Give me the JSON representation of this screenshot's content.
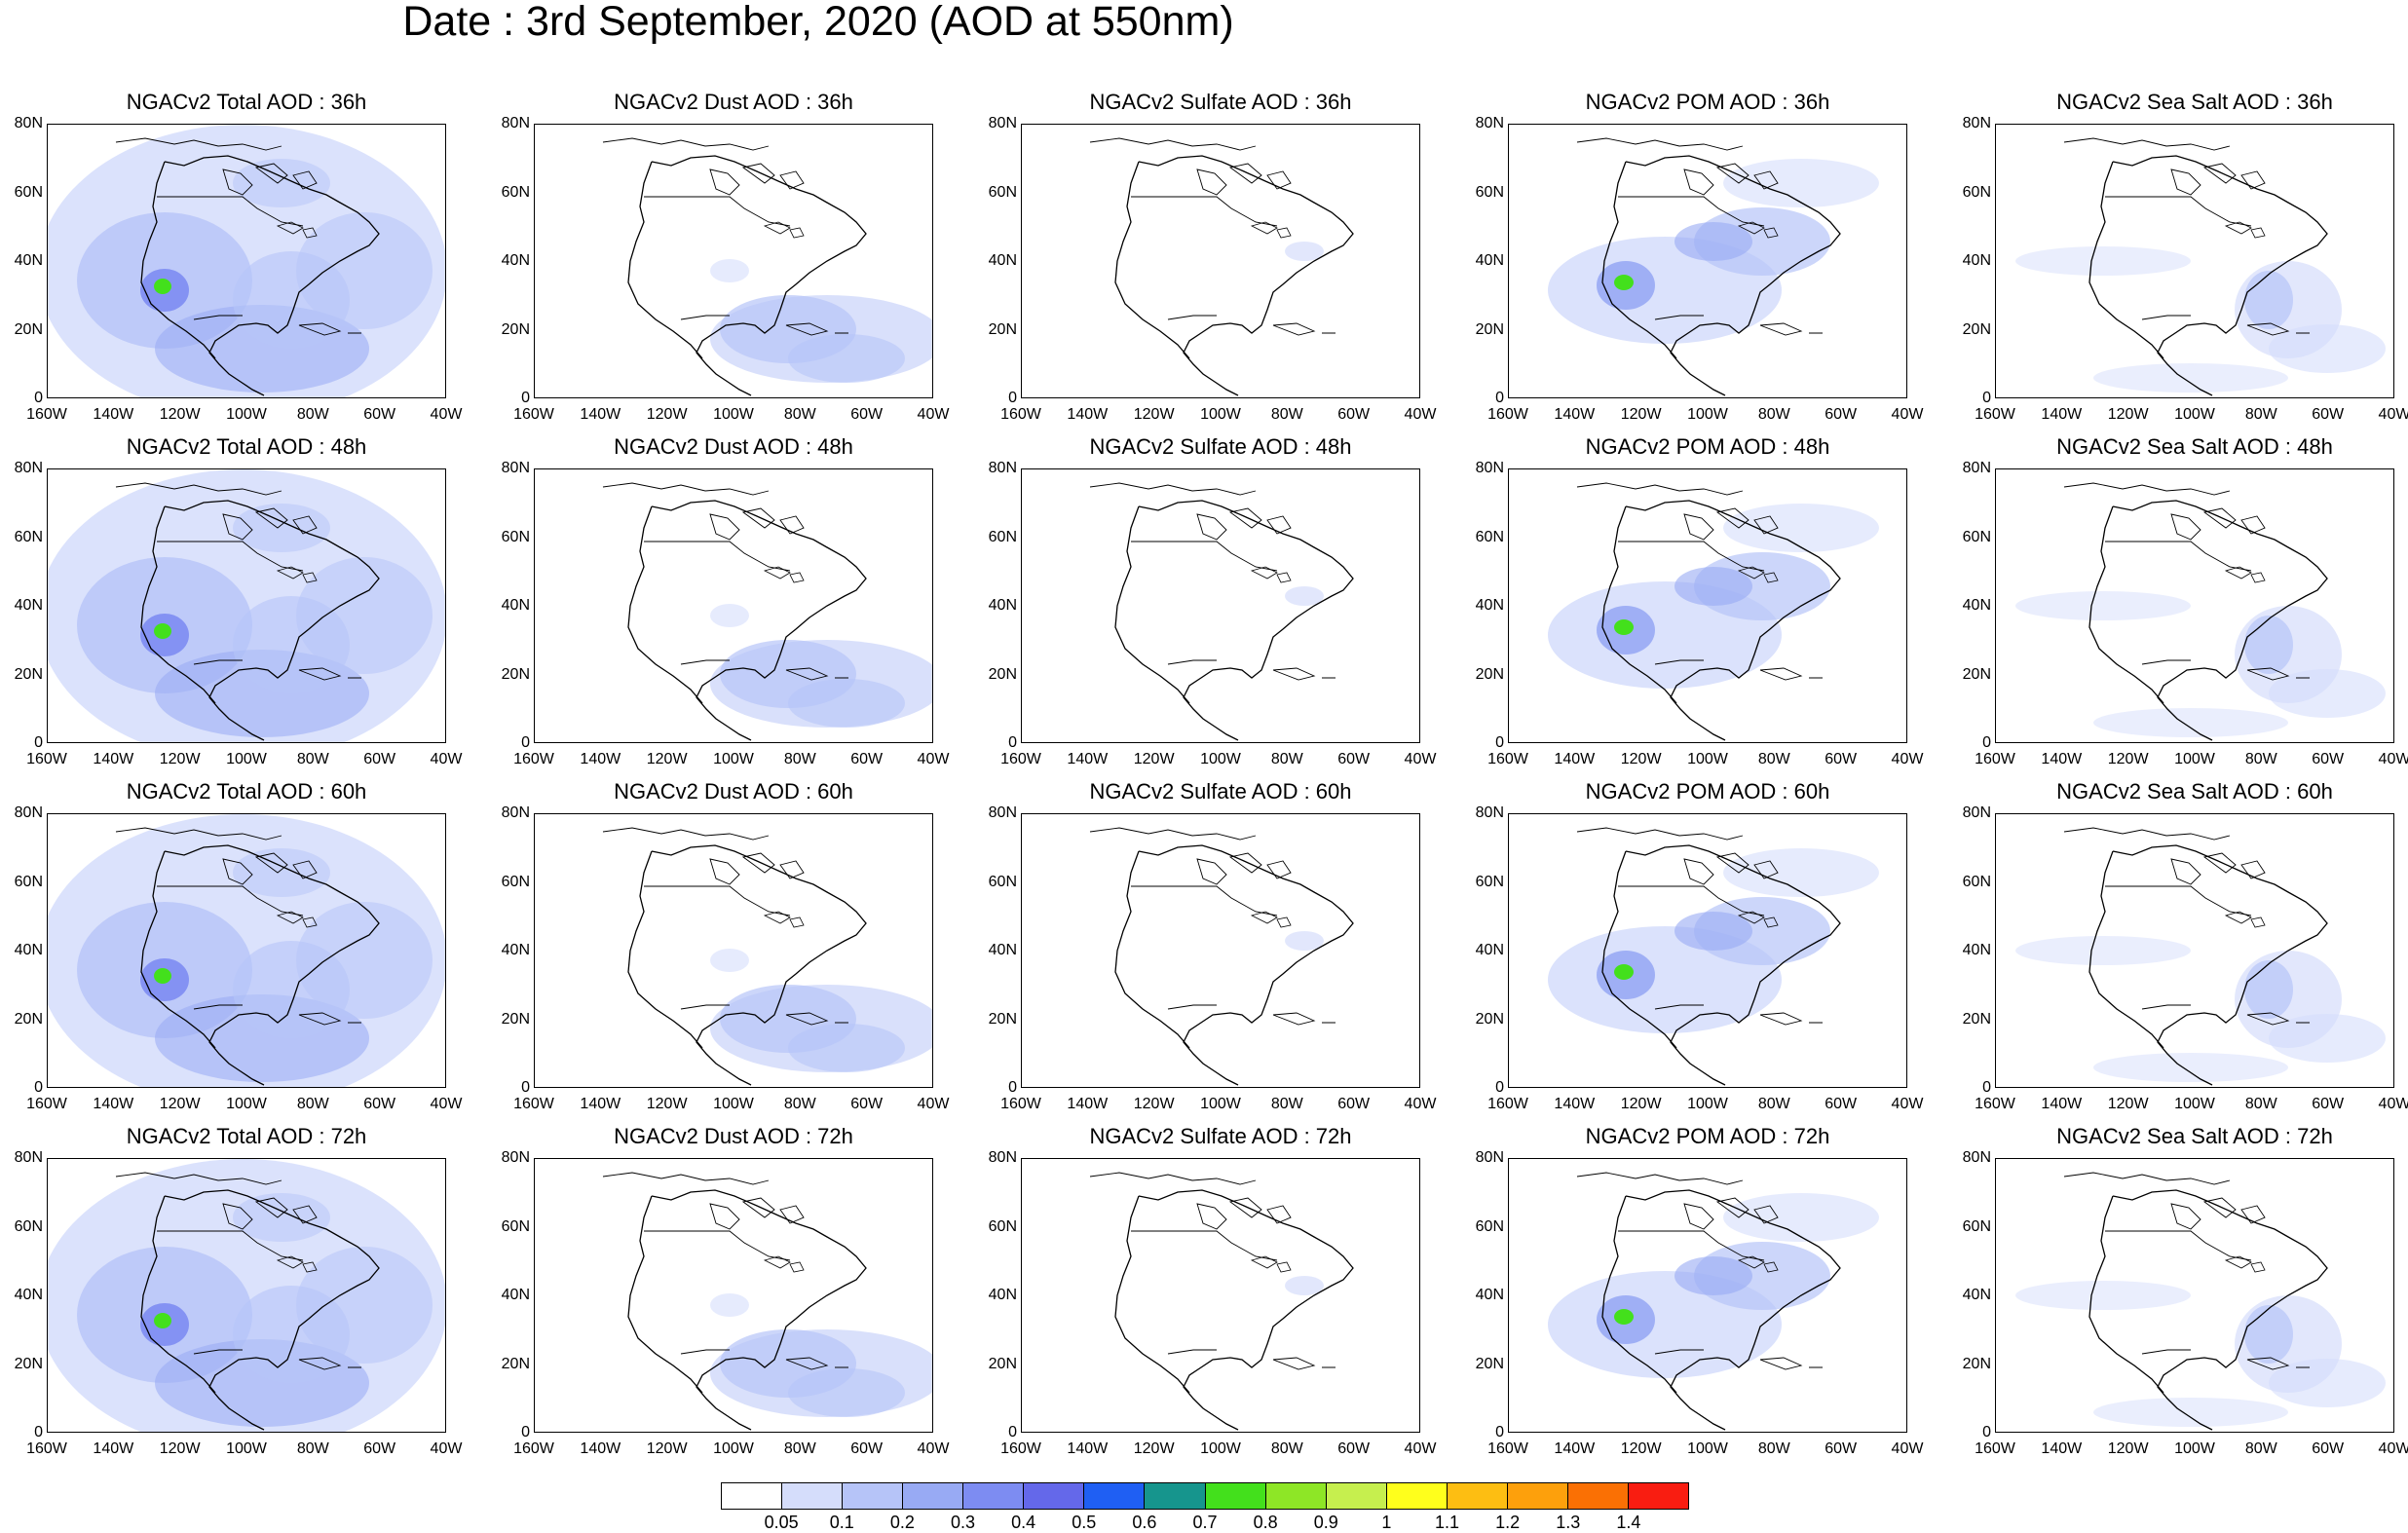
{
  "title": "Date : 3rd September, 2020 (AOD at 550nm)",
  "y_ticks": [
    "80N",
    "60N",
    "40N",
    "20N",
    "0"
  ],
  "x_ticks": [
    "160W",
    "140W",
    "120W",
    "100W",
    "80W",
    "60W",
    "40W"
  ],
  "rows": [
    [
      "NGACv2 Total AOD : 36h",
      "NGACv2 Dust AOD : 36h",
      "NGACv2 Sulfate AOD : 36h",
      "NGACv2 POM AOD : 36h",
      "NGACv2 Sea Salt AOD : 36h"
    ],
    [
      "NGACv2 Total AOD : 48h",
      "NGACv2 Dust AOD : 48h",
      "NGACv2 Sulfate AOD : 48h",
      "NGACv2 POM AOD : 48h",
      "NGACv2 Sea Salt AOD : 48h"
    ],
    [
      "NGACv2 Total AOD : 60h",
      "NGACv2 Dust AOD : 60h",
      "NGACv2 Sulfate AOD : 60h",
      "NGACv2 POM AOD : 60h",
      "NGACv2 Sea Salt AOD : 60h"
    ],
    [
      "NGACv2 Total AOD : 72h",
      "NGACv2 Dust AOD : 72h",
      "NGACv2 Sulfate AOD : 72h",
      "NGACv2 POM AOD : 72h",
      "NGACv2 Sea Salt  AOD : 72h"
    ]
  ],
  "colorbar": {
    "colors": [
      "#ffffff",
      "#d5ddfb",
      "#b6c4f8",
      "#98aaf4",
      "#7d8cf2",
      "#6468ea",
      "#1f5ff3",
      "#16958d",
      "#43e01c",
      "#8ee626",
      "#c6ef4e",
      "#ffff1c",
      "#fdbe12",
      "#fda00c",
      "#fa7004",
      "#f91d11"
    ],
    "labels": [
      "0.05",
      "0.1",
      "0.2",
      "0.3",
      "0.4",
      "0.5",
      "0.6",
      "0.7",
      "0.8",
      "0.9",
      "1",
      "1.1",
      "1.2",
      "1.3",
      "1.4"
    ]
  }
}
